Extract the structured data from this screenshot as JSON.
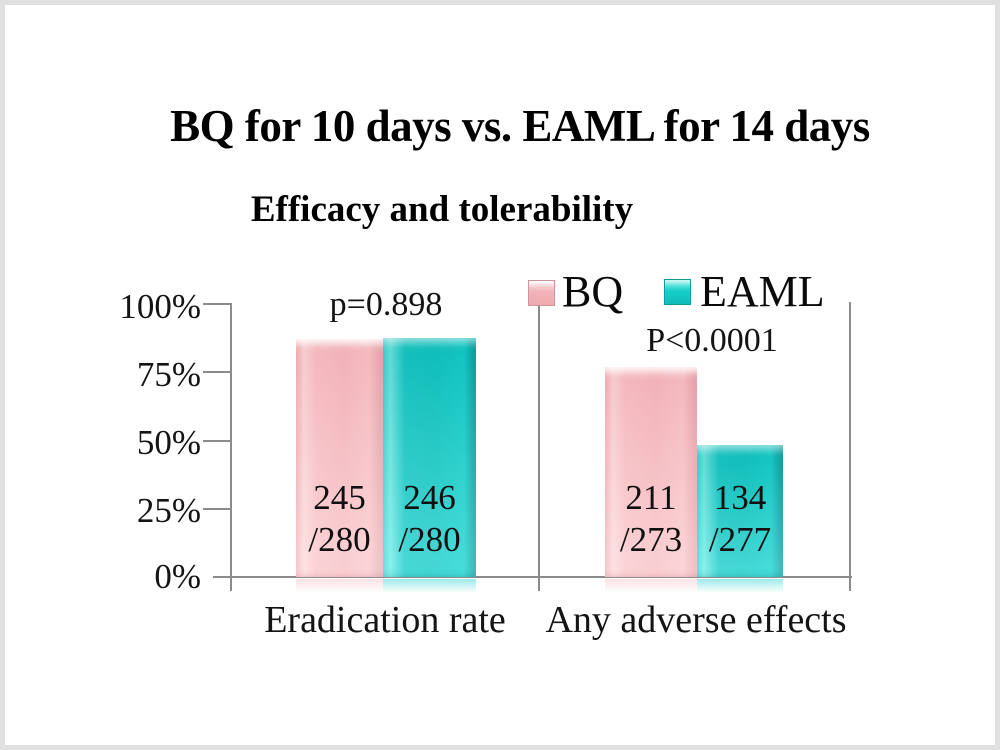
{
  "slide": {
    "title": "BQ for 10 days vs. EAML for 14 days",
    "subtitle": "Efficacy and tolerability"
  },
  "chart_data": {
    "type": "bar",
    "title": "Efficacy and tolerability",
    "categories": [
      "Eradication rate",
      "Any adverse effects"
    ],
    "series": [
      {
        "name": "BQ",
        "color": "#f7b9bd",
        "values_pct": [
          87.5,
          77.3
        ],
        "fractions": [
          "245/280",
          "211/273"
        ]
      },
      {
        "name": "EAML",
        "color": "#0ecac6",
        "values_pct": [
          87.9,
          48.4
        ],
        "fractions": [
          "246/280",
          "134/277"
        ]
      }
    ],
    "annotations": [
      "p=0.898",
      "P<0.0001"
    ],
    "yticks": [
      "100%",
      "75%",
      "50%",
      "25%",
      "0%"
    ],
    "ylim": [
      0,
      100
    ],
    "grid": "category-divider-lines",
    "legend_position": "top-right"
  },
  "bars": [
    {
      "series": "BQ",
      "category": "Eradication rate",
      "line1": "245",
      "line2": "/280",
      "pct": 87.5
    },
    {
      "series": "EAML",
      "category": "Eradication rate",
      "line1": "246",
      "line2": "/280",
      "pct": 87.86
    },
    {
      "series": "BQ",
      "category": "Any adverse effects",
      "line1": "211",
      "line2": "/273",
      "pct": 77.29
    },
    {
      "series": "EAML",
      "category": "Any adverse effects",
      "line1": "134",
      "line2": "/277",
      "pct": 48.38
    }
  ]
}
